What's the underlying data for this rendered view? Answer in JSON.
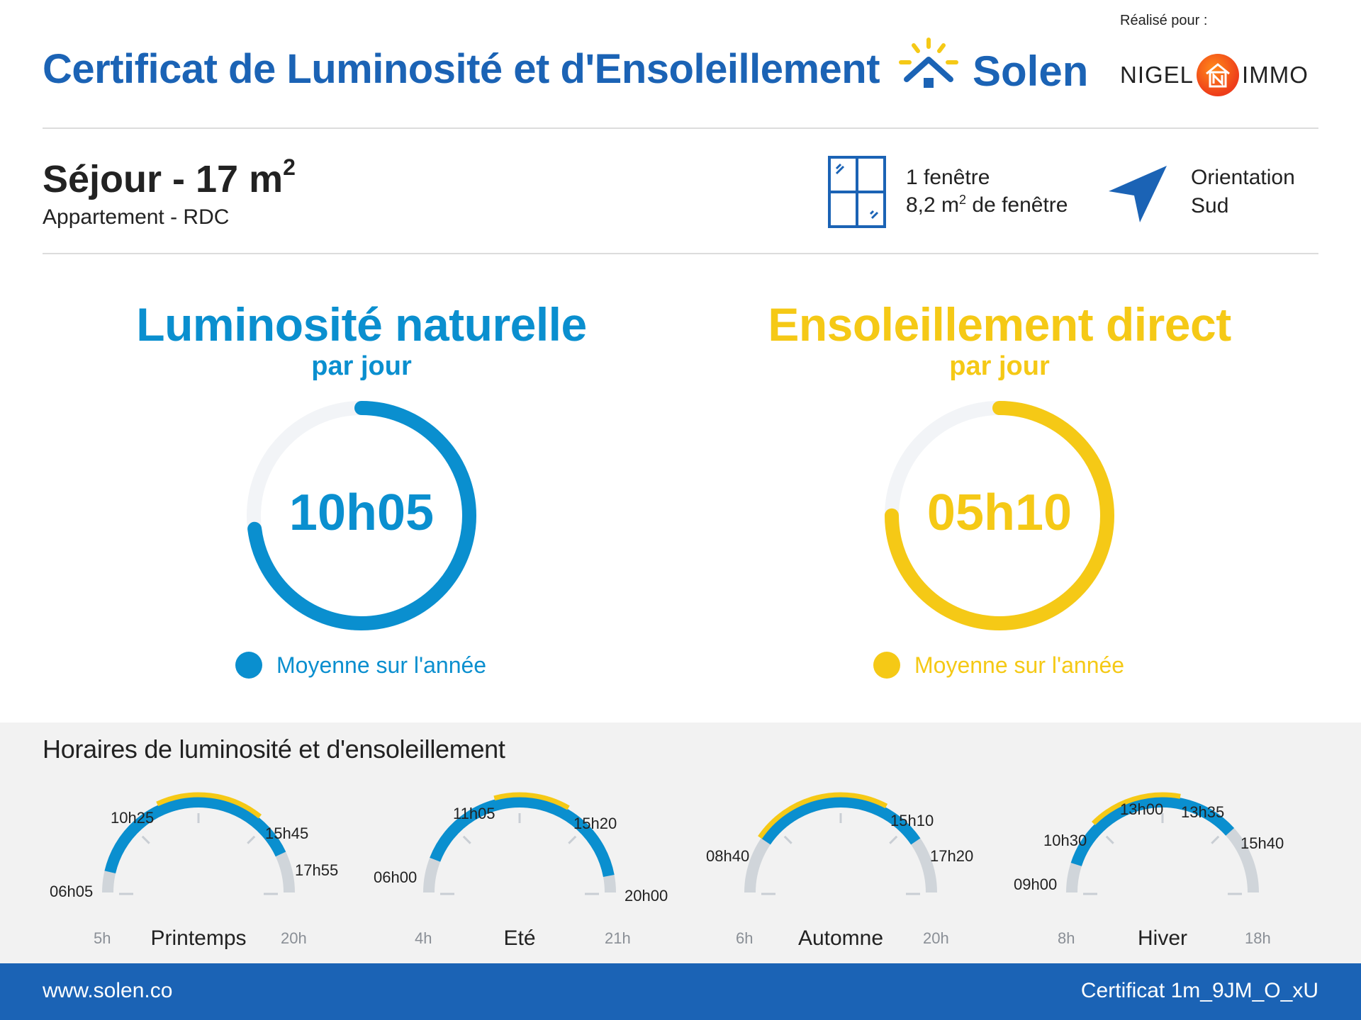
{
  "header": {
    "title": "Certificat de Luminosité et d'Ensoleillement",
    "brand": "Solen",
    "made_for_label": "Réalisé pour :",
    "client_left": "NIGEL",
    "client_right": "IMMO"
  },
  "room": {
    "name": "Séjour - 17 m",
    "superscript": "2",
    "subtitle": "Appartement - RDC",
    "windows_count": "1 fenêtre",
    "window_area_prefix": "8,2 m",
    "window_area_sup": "2",
    "window_area_suffix": " de fenêtre",
    "orientation_label": "Orientation",
    "orientation_value": "Sud"
  },
  "luminosity": {
    "title": "Luminosité naturelle",
    "subtitle": "par jour",
    "value": "10h05",
    "fraction": 0.73,
    "legend": "Moyenne sur l'année",
    "color": "#0a8fcf"
  },
  "sunshine": {
    "title": "Ensoleillement direct",
    "subtitle": "par jour",
    "value": "05h10",
    "fraction": 0.75,
    "legend": "Moyenne sur l'année",
    "color": "#f5c916"
  },
  "schedule": {
    "title": "Horaires de luminosité et d'ensoleillement",
    "seasons": [
      {
        "name": "Printemps",
        "axis_start": "5h",
        "axis_end": "20h",
        "lum_start": "06h05",
        "lum_end": "17h55",
        "sun_start": "10h25",
        "sun_end": "15h45"
      },
      {
        "name": "Eté",
        "axis_start": "4h",
        "axis_end": "21h",
        "lum_start": "06h00",
        "lum_end": "20h00",
        "sun_start": "11h05",
        "sun_end": "15h20"
      },
      {
        "name": "Automne",
        "axis_start": "6h",
        "axis_end": "20h",
        "lum_start": "08h40",
        "lum_end": "17h20",
        "sun_start": "08h40",
        "sun_end": "15h10"
      },
      {
        "name": "Hiver",
        "axis_start": "8h",
        "axis_end": "18h",
        "lum_start": "09h00",
        "lum_end": "15h40",
        "sun_start": "10h30",
        "sun_end": "13h35",
        "peak": "13h00"
      }
    ]
  },
  "footer": {
    "website": "www.solen.co",
    "certificate": "Certificat 1m_9JM_O_xU"
  },
  "colors": {
    "brand_blue": "#1b63b5",
    "lum_blue": "#0a8fcf",
    "sun_yellow": "#f5c916",
    "track_grey": "#d0d5da"
  }
}
